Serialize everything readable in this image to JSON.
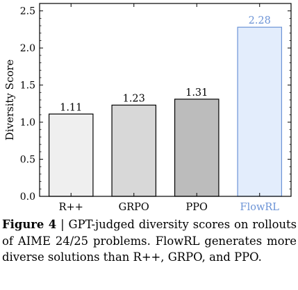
{
  "chart_data": {
    "type": "bar",
    "categories": [
      "R++",
      "GRPO",
      "PPO",
      "FlowRL"
    ],
    "values": [
      1.11,
      1.23,
      1.31,
      2.28
    ],
    "value_labels": [
      "1.11",
      "1.23",
      "1.31",
      "2.28"
    ],
    "ylabel": "Diversity Score",
    "xlabel": "",
    "ylim": [
      0,
      2.6
    ],
    "yticks": [
      0,
      0.5,
      1.0,
      1.5,
      2.0,
      2.5
    ],
    "ytick_labels": [
      "0.0",
      "0.5",
      "1.0",
      "1.5",
      "2.0",
      "2.5"
    ],
    "grid": false,
    "legend": "none",
    "bar_fill_colors": [
      "#efefef",
      "#d8d8d8",
      "#bcbcbc",
      "#e3edfc"
    ],
    "bar_edge_colors": [
      "#000000",
      "#000000",
      "#000000",
      "#6b93d6"
    ],
    "label_colors": [
      "#000000",
      "#000000",
      "#000000",
      "#6b93d6"
    ]
  },
  "caption": {
    "label": "Figure 4",
    "text": " | GPT-judged diversity scores on roll­outs of AIME 24/25 problems. FlowRL gener­ates more diverse solutions than R++, GRPO, and PPO."
  }
}
